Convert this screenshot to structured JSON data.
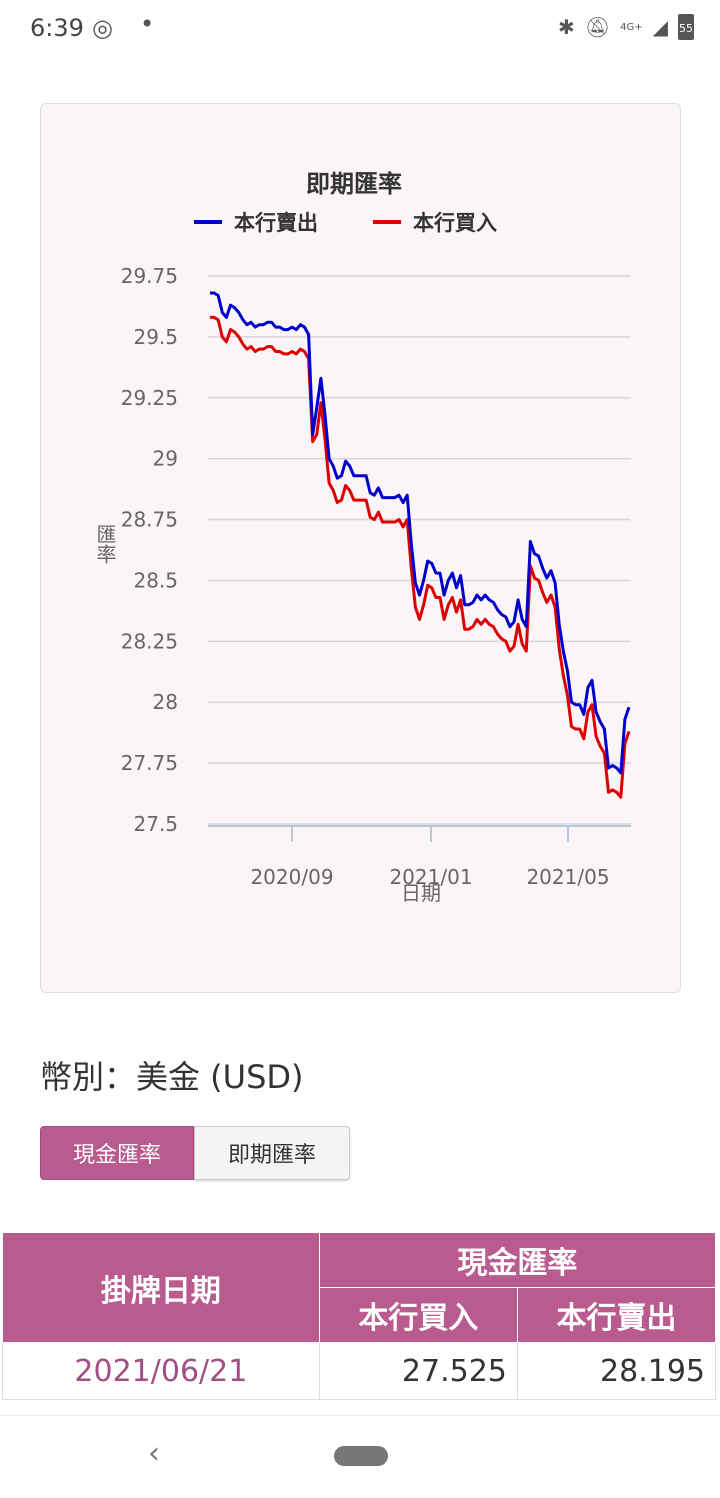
{
  "status_bar": {
    "time": "6:39",
    "icons": [
      "app-sync-icon",
      "bluetooth-icon",
      "mute-icon",
      "signal-icon",
      "battery-icon"
    ],
    "network": "4G+",
    "battery": "55"
  },
  "chart_data": {
    "type": "line",
    "title": "即期匯率",
    "xlabel": "日期",
    "ylabel": "匯率",
    "ylim": [
      27.5,
      29.75
    ],
    "yticks": [
      "29.75",
      "29.5",
      "29.25",
      "29",
      "28.75",
      "28.5",
      "28.25",
      "28",
      "27.75",
      "27.5"
    ],
    "xticks": [
      "2020/09",
      "2021/01",
      "2021/05"
    ],
    "legend_position": "top",
    "grid": true,
    "series": [
      {
        "name": "本行賣出",
        "color": "#0000cc",
        "values": [
          29.68,
          29.68,
          29.67,
          29.6,
          29.58,
          29.63,
          29.62,
          29.6,
          29.57,
          29.55,
          29.56,
          29.54,
          29.55,
          29.55,
          29.56,
          29.56,
          29.54,
          29.54,
          29.53,
          29.53,
          29.54,
          29.53,
          29.55,
          29.54,
          29.51,
          29.1,
          29.21,
          29.33,
          29.18,
          29.0,
          28.97,
          28.92,
          28.93,
          28.99,
          28.97,
          28.93,
          28.93,
          28.93,
          28.93,
          28.86,
          28.85,
          28.88,
          28.84,
          28.84,
          28.84,
          28.84,
          28.85,
          28.82,
          28.85,
          28.65,
          28.49,
          28.44,
          28.5,
          28.58,
          28.57,
          28.53,
          28.53,
          28.44,
          28.5,
          28.53,
          28.47,
          28.52,
          28.4,
          28.4,
          28.41,
          28.44,
          28.42,
          28.44,
          28.42,
          28.41,
          28.38,
          28.36,
          28.35,
          28.31,
          28.33,
          28.42,
          28.34,
          28.31,
          28.66,
          28.61,
          28.6,
          28.55,
          28.51,
          28.54,
          28.49,
          28.32,
          28.21,
          28.13,
          28.0,
          27.99,
          27.99,
          27.95,
          28.06,
          28.09,
          27.96,
          27.92,
          27.89,
          27.73,
          27.74,
          27.73,
          27.71,
          27.93,
          27.98
        ]
      },
      {
        "name": "本行買入",
        "color": "#dd0000",
        "values": [
          29.58,
          29.58,
          29.57,
          29.5,
          29.48,
          29.53,
          29.52,
          29.5,
          29.47,
          29.45,
          29.46,
          29.44,
          29.45,
          29.45,
          29.46,
          29.46,
          29.44,
          29.44,
          29.43,
          29.43,
          29.44,
          29.43,
          29.45,
          29.44,
          29.41,
          29.07,
          29.1,
          29.23,
          29.08,
          28.9,
          28.87,
          28.82,
          28.83,
          28.89,
          28.87,
          28.83,
          28.83,
          28.83,
          28.83,
          28.76,
          28.75,
          28.78,
          28.74,
          28.74,
          28.74,
          28.74,
          28.75,
          28.72,
          28.75,
          28.55,
          28.39,
          28.34,
          28.4,
          28.48,
          28.47,
          28.43,
          28.43,
          28.34,
          28.4,
          28.43,
          28.37,
          28.42,
          28.3,
          28.3,
          28.31,
          28.34,
          28.32,
          28.34,
          28.32,
          28.31,
          28.28,
          28.26,
          28.25,
          28.21,
          28.23,
          28.32,
          28.24,
          28.21,
          28.56,
          28.51,
          28.5,
          28.45,
          28.41,
          28.44,
          28.39,
          28.22,
          28.11,
          28.03,
          27.9,
          27.89,
          27.89,
          27.85,
          27.96,
          27.99,
          27.86,
          27.82,
          27.79,
          27.63,
          27.64,
          27.63,
          27.61,
          27.83,
          27.88
        ]
      }
    ]
  },
  "currency_label": "幣別：美金 (USD)",
  "tabs": [
    {
      "label": "現金匯率",
      "active": true
    },
    {
      "label": "即期匯率",
      "active": false
    }
  ],
  "table": {
    "date_header": "掛牌日期",
    "group_header": "現金匯率",
    "buy_header": "本行買入",
    "sell_header": "本行賣出",
    "rows": [
      {
        "date": "2021/06/21",
        "buy": "27.525",
        "sell": "28.195"
      }
    ]
  },
  "nav": {
    "back_icon": "back-chevron-icon",
    "home_icon": "home-pill-icon"
  }
}
